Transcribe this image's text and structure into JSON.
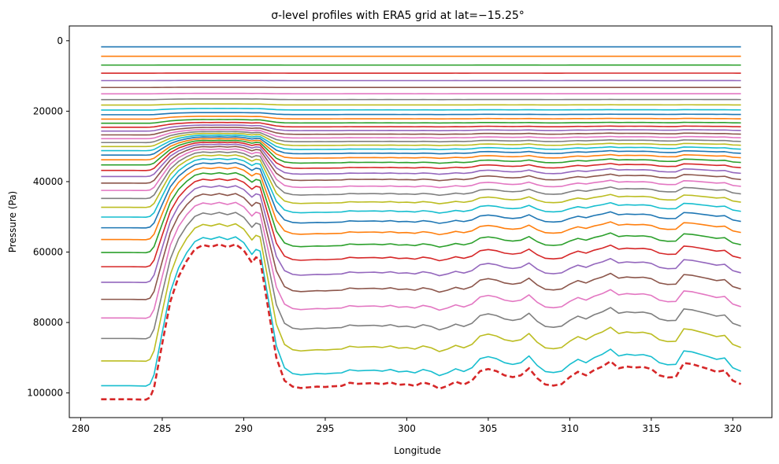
{
  "chart_data": {
    "type": "line",
    "title": "σ-level profiles with ERA5 grid at lat=−15.25°",
    "xlabel": "Longitude",
    "ylabel": "Pressure (Pa)",
    "xlim": [
      279.3,
      322.4
    ],
    "ylim": [
      107000,
      -4200
    ],
    "y_inverted": true,
    "grid": false,
    "x_ticks": [
      280,
      285,
      290,
      295,
      300,
      305,
      310,
      315,
      320
    ],
    "y_ticks": [
      0,
      20000,
      40000,
      60000,
      80000,
      100000
    ],
    "x_tick_labels": [
      "280",
      "285",
      "290",
      "295",
      "300",
      "305",
      "310",
      "315",
      "320"
    ],
    "y_tick_labels": [
      "0",
      "20000",
      "40000",
      "60000",
      "80000",
      "100000"
    ],
    "n_levels": 40,
    "color_cycle": [
      "#1f77b4",
      "#ff7f0e",
      "#2ca02c",
      "#d62728",
      "#9467bd",
      "#8c564b",
      "#e377c2",
      "#7f7f7f",
      "#bcbd22",
      "#17becf"
    ],
    "surface_series": {
      "style": "dashed",
      "color": "#d62728",
      "lon": [
        281.25,
        283.0,
        284.0,
        284.25,
        284.5,
        285.0,
        285.5,
        286.0,
        286.5,
        287.0,
        287.5,
        288.0,
        288.5,
        289.0,
        289.5,
        290.0,
        290.5,
        290.75,
        291.0,
        291.5,
        292.0,
        292.5,
        293.0,
        293.5,
        294.0,
        294.5,
        295.0,
        295.5,
        296.0,
        296.5,
        297.0,
        297.5,
        298.0,
        298.5,
        299.0,
        299.5,
        300.0,
        300.5,
        301.0,
        301.5,
        302.0,
        302.5,
        303.0,
        303.5,
        304.0,
        304.5,
        305.0,
        305.5,
        306.0,
        306.5,
        307.0,
        307.5,
        308.0,
        308.5,
        309.0,
        309.5,
        310.0,
        310.5,
        311.0,
        311.5,
        312.0,
        312.5,
        313.0,
        313.5,
        314.0,
        314.5,
        315.0,
        315.5,
        316.0,
        316.5,
        317.0,
        317.5,
        318.0,
        318.5,
        319.0,
        319.5,
        320.0,
        320.5
      ],
      "pressure": [
        101800,
        101800,
        101900,
        101300,
        98500,
        86000,
        74000,
        67000,
        62500,
        59200,
        58000,
        58500,
        57800,
        58600,
        57800,
        59500,
        63000,
        61500,
        62000,
        76000,
        90000,
        96500,
        98200,
        98600,
        98400,
        98200,
        98300,
        98100,
        98000,
        97100,
        97400,
        97300,
        97200,
        97500,
        97000,
        97700,
        97500,
        98000,
        97000,
        97600,
        98800,
        98000,
        96800,
        97600,
        96500,
        93800,
        93200,
        93800,
        95000,
        95500,
        95000,
        93000,
        95800,
        97600,
        97900,
        97500,
        95500,
        94000,
        95000,
        93500,
        92500,
        91000,
        93000,
        92500,
        92800,
        92600,
        93200,
        95000,
        95600,
        95500,
        91500,
        91800,
        92500,
        93200,
        94000,
        93600,
        96500,
        97500
      ]
    }
  }
}
